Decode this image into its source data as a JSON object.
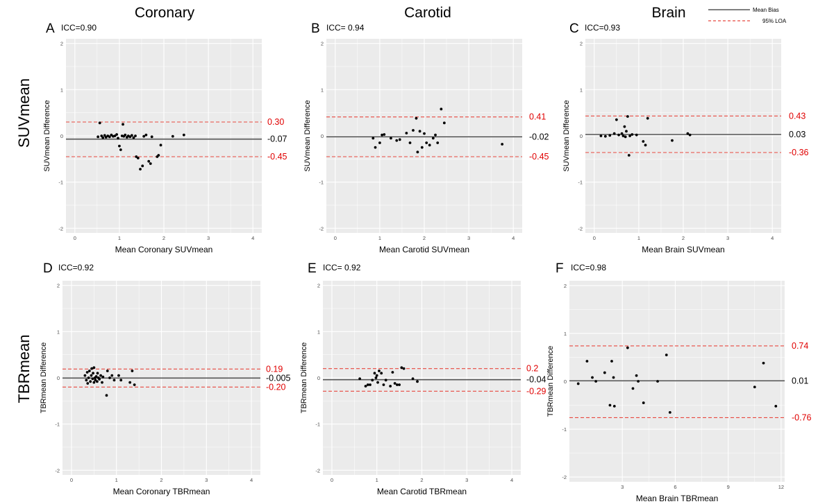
{
  "header": {
    "columns": [
      "Coronary",
      "Carotid",
      "Brain"
    ],
    "rows": [
      "SUVmean",
      "TBRmean"
    ]
  },
  "legend": {
    "mean_label": "Mean  Bias",
    "loa_label": "95% LOA"
  },
  "colors": {
    "panel_bg": "#ebebeb",
    "grid": "#ffffff",
    "mean_line": "#555555",
    "loa_line": "#e8483f",
    "loa_text": "#e00000",
    "point": "#000000"
  },
  "chart_data": [
    {
      "type": "scatter",
      "letter": "A",
      "icc": "ICC=0.90",
      "xlabel": "Mean Coronary SUVmean",
      "ylabel": "SUVmean  Difference",
      "xlim": [
        -0.2,
        4.2
      ],
      "ylim": [
        -2.1,
        2.1
      ],
      "xticks": [
        0,
        1,
        2,
        3,
        4
      ],
      "yticks": [
        -2,
        -1,
        0,
        1,
        2
      ],
      "grid": true,
      "mean": -0.07,
      "upper_loa": 0.3,
      "lower_loa": -0.45,
      "mean_text": "-0.07",
      "upper_text": "0.30",
      "lower_text": "-0.45",
      "points": [
        [
          0.52,
          -0.02
        ],
        [
          0.56,
          0.28
        ],
        [
          0.6,
          0.0
        ],
        [
          0.63,
          -0.04
        ],
        [
          0.67,
          0.01
        ],
        [
          0.7,
          -0.03
        ],
        [
          0.74,
          0.0
        ],
        [
          0.78,
          -0.02
        ],
        [
          0.82,
          0.02
        ],
        [
          0.86,
          -0.01
        ],
        [
          0.9,
          0.0
        ],
        [
          0.94,
          0.03
        ],
        [
          0.97,
          -0.05
        ],
        [
          1.0,
          -0.22
        ],
        [
          1.03,
          -0.3
        ],
        [
          1.06,
          0.0
        ],
        [
          1.08,
          0.25
        ],
        [
          1.1,
          -0.01
        ],
        [
          1.13,
          0.02
        ],
        [
          1.17,
          -0.03
        ],
        [
          1.2,
          0.0
        ],
        [
          1.24,
          -0.02
        ],
        [
          1.28,
          0.01
        ],
        [
          1.32,
          -0.04
        ],
        [
          1.36,
          0.0
        ],
        [
          1.38,
          -0.45
        ],
        [
          1.42,
          -0.48
        ],
        [
          1.47,
          -0.72
        ],
        [
          1.52,
          -0.65
        ],
        [
          1.55,
          -0.01
        ],
        [
          1.6,
          0.02
        ],
        [
          1.66,
          -0.55
        ],
        [
          1.7,
          -0.6
        ],
        [
          1.73,
          -0.02
        ],
        [
          1.85,
          -0.45
        ],
        [
          1.88,
          -0.42
        ],
        [
          1.93,
          -0.2
        ],
        [
          2.2,
          -0.01
        ],
        [
          2.45,
          0.02
        ]
      ]
    },
    {
      "type": "scatter",
      "letter": "B",
      "icc": "ICC= 0.94",
      "xlabel": "Mean Carotid SUVmean",
      "ylabel": "SUVmean  Difference",
      "xlim": [
        -0.2,
        4.2
      ],
      "ylim": [
        -2.1,
        2.1
      ],
      "xticks": [
        0,
        1,
        2,
        3,
        4
      ],
      "yticks": [
        -2,
        -1,
        0,
        1,
        2
      ],
      "grid": true,
      "mean": -0.02,
      "upper_loa": 0.41,
      "lower_loa": -0.45,
      "mean_text": "-0.02",
      "upper_text": "0.41",
      "lower_text": "-0.45",
      "points": [
        [
          0.85,
          -0.05
        ],
        [
          0.9,
          -0.25
        ],
        [
          1.0,
          -0.15
        ],
        [
          1.05,
          0.02
        ],
        [
          1.1,
          0.03
        ],
        [
          1.25,
          -0.05
        ],
        [
          1.38,
          -0.1
        ],
        [
          1.45,
          -0.08
        ],
        [
          1.6,
          0.06
        ],
        [
          1.68,
          -0.15
        ],
        [
          1.75,
          0.12
        ],
        [
          1.82,
          0.38
        ],
        [
          1.85,
          -0.35
        ],
        [
          1.9,
          0.1
        ],
        [
          1.95,
          -0.25
        ],
        [
          2.0,
          0.05
        ],
        [
          2.05,
          -0.15
        ],
        [
          2.12,
          -0.2
        ],
        [
          2.2,
          -0.05
        ],
        [
          2.25,
          0.02
        ],
        [
          2.3,
          -0.15
        ],
        [
          2.38,
          0.58
        ],
        [
          2.45,
          0.28
        ],
        [
          3.75,
          -0.18
        ]
      ]
    },
    {
      "type": "scatter",
      "letter": "C",
      "icc": "ICC=0.93",
      "xlabel": "Mean Brain SUVmean",
      "ylabel": "SUVmean  Difference",
      "xlim": [
        -0.2,
        4.2
      ],
      "ylim": [
        -2.1,
        2.1
      ],
      "xticks": [
        0,
        1,
        2,
        3,
        4
      ],
      "yticks": [
        -2,
        -1,
        0,
        1,
        2
      ],
      "grid": true,
      "mean": 0.03,
      "upper_loa": 0.43,
      "lower_loa": -0.36,
      "mean_text": "0.03",
      "upper_text": "0.43",
      "lower_text": "-0.36",
      "points": [
        [
          0.15,
          0.0
        ],
        [
          0.25,
          -0.01
        ],
        [
          0.35,
          0.01
        ],
        [
          0.45,
          0.05
        ],
        [
          0.5,
          0.35
        ],
        [
          0.55,
          0.02
        ],
        [
          0.62,
          0.05
        ],
        [
          0.65,
          0.0
        ],
        [
          0.68,
          0.2
        ],
        [
          0.7,
          -0.02
        ],
        [
          0.72,
          0.1
        ],
        [
          0.75,
          0.42
        ],
        [
          0.78,
          -0.42
        ],
        [
          0.8,
          0.0
        ],
        [
          0.85,
          0.03
        ],
        [
          0.95,
          0.02
        ],
        [
          1.1,
          -0.12
        ],
        [
          1.15,
          -0.2
        ],
        [
          1.2,
          0.38
        ],
        [
          1.75,
          -0.1
        ],
        [
          2.1,
          0.05
        ],
        [
          2.15,
          0.02
        ]
      ]
    },
    {
      "type": "scatter",
      "letter": "D",
      "icc": "ICC=0.92",
      "xlabel": "Mean Coronary TBRmean",
      "ylabel": "TBRmean  Difference",
      "xlim": [
        -0.2,
        4.2
      ],
      "ylim": [
        -2.1,
        2.1
      ],
      "xticks": [
        0,
        1,
        2,
        3,
        4
      ],
      "yticks": [
        -2,
        -1,
        0,
        1,
        2
      ],
      "grid": true,
      "mean": -0.005,
      "upper_loa": 0.19,
      "lower_loa": -0.2,
      "mean_text": "-0.005",
      "upper_text": "0.19",
      "lower_text": "-0.20",
      "points": [
        [
          0.3,
          0.05
        ],
        [
          0.33,
          -0.05
        ],
        [
          0.35,
          0.12
        ],
        [
          0.36,
          -0.12
        ],
        [
          0.38,
          0.0
        ],
        [
          0.4,
          0.15
        ],
        [
          0.42,
          -0.08
        ],
        [
          0.44,
          0.05
        ],
        [
          0.45,
          0.2
        ],
        [
          0.47,
          -0.02
        ],
        [
          0.48,
          0.1
        ],
        [
          0.5,
          -0.1
        ],
        [
          0.5,
          0.22
        ],
        [
          0.52,
          0.0
        ],
        [
          0.53,
          -0.05
        ],
        [
          0.55,
          0.03
        ],
        [
          0.57,
          -0.08
        ],
        [
          0.58,
          0.1
        ],
        [
          0.6,
          0.0
        ],
        [
          0.62,
          -0.03
        ],
        [
          0.65,
          0.05
        ],
        [
          0.68,
          -0.1
        ],
        [
          0.7,
          0.02
        ],
        [
          0.78,
          -0.38
        ],
        [
          0.8,
          0.15
        ],
        [
          0.85,
          0.0
        ],
        [
          0.9,
          0.05
        ],
        [
          0.95,
          -0.05
        ],
        [
          1.05,
          0.05
        ],
        [
          1.1,
          -0.05
        ],
        [
          1.3,
          -0.1
        ],
        [
          1.35,
          0.15
        ],
        [
          1.4,
          -0.15
        ]
      ]
    },
    {
      "type": "scatter",
      "letter": "E",
      "icc": "ICC= 0.92",
      "xlabel": "Mean Carotid TBRmean",
      "ylabel": "TBRmean  Difference",
      "xlim": [
        -0.2,
        4.2
      ],
      "ylim": [
        -2.1,
        2.1
      ],
      "xticks": [
        0,
        1,
        2,
        3,
        4
      ],
      "yticks": [
        -2,
        -1,
        0,
        1,
        2
      ],
      "grid": true,
      "mean": -0.04,
      "upper_loa": 0.2,
      "lower_loa": -0.29,
      "mean_text": "-0.04",
      "upper_text": "0.2",
      "lower_text": "-0.29",
      "points": [
        [
          0.62,
          -0.02
        ],
        [
          0.75,
          -0.18
        ],
        [
          0.8,
          -0.15
        ],
        [
          0.85,
          -0.15
        ],
        [
          0.9,
          -0.05
        ],
        [
          0.95,
          0.1
        ],
        [
          0.98,
          0.0
        ],
        [
          1.0,
          0.05
        ],
        [
          1.02,
          -0.1
        ],
        [
          1.05,
          0.15
        ],
        [
          1.1,
          0.1
        ],
        [
          1.15,
          -0.15
        ],
        [
          1.2,
          -0.05
        ],
        [
          1.3,
          -0.18
        ],
        [
          1.35,
          0.12
        ],
        [
          1.4,
          -0.12
        ],
        [
          1.45,
          -0.15
        ],
        [
          1.5,
          -0.15
        ],
        [
          1.55,
          0.22
        ],
        [
          1.6,
          0.2
        ],
        [
          1.8,
          -0.02
        ],
        [
          1.9,
          -0.08
        ]
      ]
    },
    {
      "type": "scatter",
      "letter": "F",
      "icc": "ICC=0.98",
      "xlabel": "Mean Brain TBRmean",
      "ylabel": "TBRmean  Difference",
      "xlim": [
        0,
        12.2
      ],
      "ylim": [
        -2.1,
        2.1
      ],
      "xticks": [
        3,
        6,
        9,
        12
      ],
      "yticks": [
        -2,
        -1,
        0,
        1,
        2
      ],
      "grid": true,
      "mean": 0.01,
      "upper_loa": 0.74,
      "lower_loa": -0.76,
      "mean_text": "0.01",
      "upper_text": "0.74",
      "lower_text": "-0.76",
      "points": [
        [
          0.5,
          -0.05
        ],
        [
          1.0,
          0.42
        ],
        [
          1.3,
          0.08
        ],
        [
          1.5,
          0.0
        ],
        [
          2.0,
          0.18
        ],
        [
          2.3,
          -0.5
        ],
        [
          2.4,
          0.42
        ],
        [
          2.5,
          0.08
        ],
        [
          2.55,
          -0.52
        ],
        [
          3.3,
          0.7
        ],
        [
          3.6,
          -0.15
        ],
        [
          3.8,
          0.12
        ],
        [
          3.9,
          0.0
        ],
        [
          4.2,
          -0.45
        ],
        [
          5.0,
          0.0
        ],
        [
          5.5,
          0.55
        ],
        [
          5.7,
          -0.65
        ],
        [
          10.5,
          -0.12
        ],
        [
          11.0,
          0.38
        ],
        [
          11.7,
          -0.52
        ]
      ]
    }
  ]
}
